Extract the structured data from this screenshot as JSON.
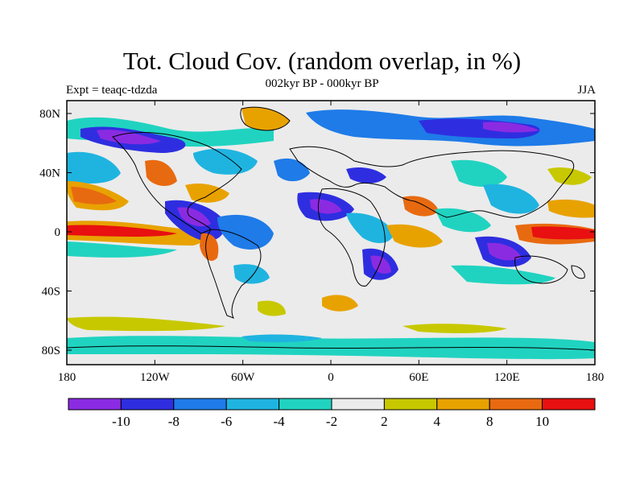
{
  "title": "Tot. Cloud Cov. (random overlap, in %)",
  "subtitle_left": "Expt = teaqc-tdzda",
  "subtitle_center": "002kyr BP - 000kyr BP",
  "subtitle_right": "JJA",
  "axes": {
    "y_ticks": [
      "80N",
      "40N",
      "0",
      "40S",
      "80S"
    ],
    "x_ticks": [
      "180",
      "120W",
      "60W",
      "0",
      "60E",
      "120E",
      "180"
    ]
  },
  "colorbar": {
    "colors": [
      "#8a2be2",
      "#2e2ee0",
      "#1e7be8",
      "#1fb4e0",
      "#20d3c0",
      "#ebebeb",
      "#c8c800",
      "#e8a200",
      "#e86a10",
      "#e81010"
    ],
    "labels": [
      "-10",
      "-8",
      "-6",
      "-4",
      "-2",
      "2",
      "4",
      "8",
      "10"
    ]
  }
}
